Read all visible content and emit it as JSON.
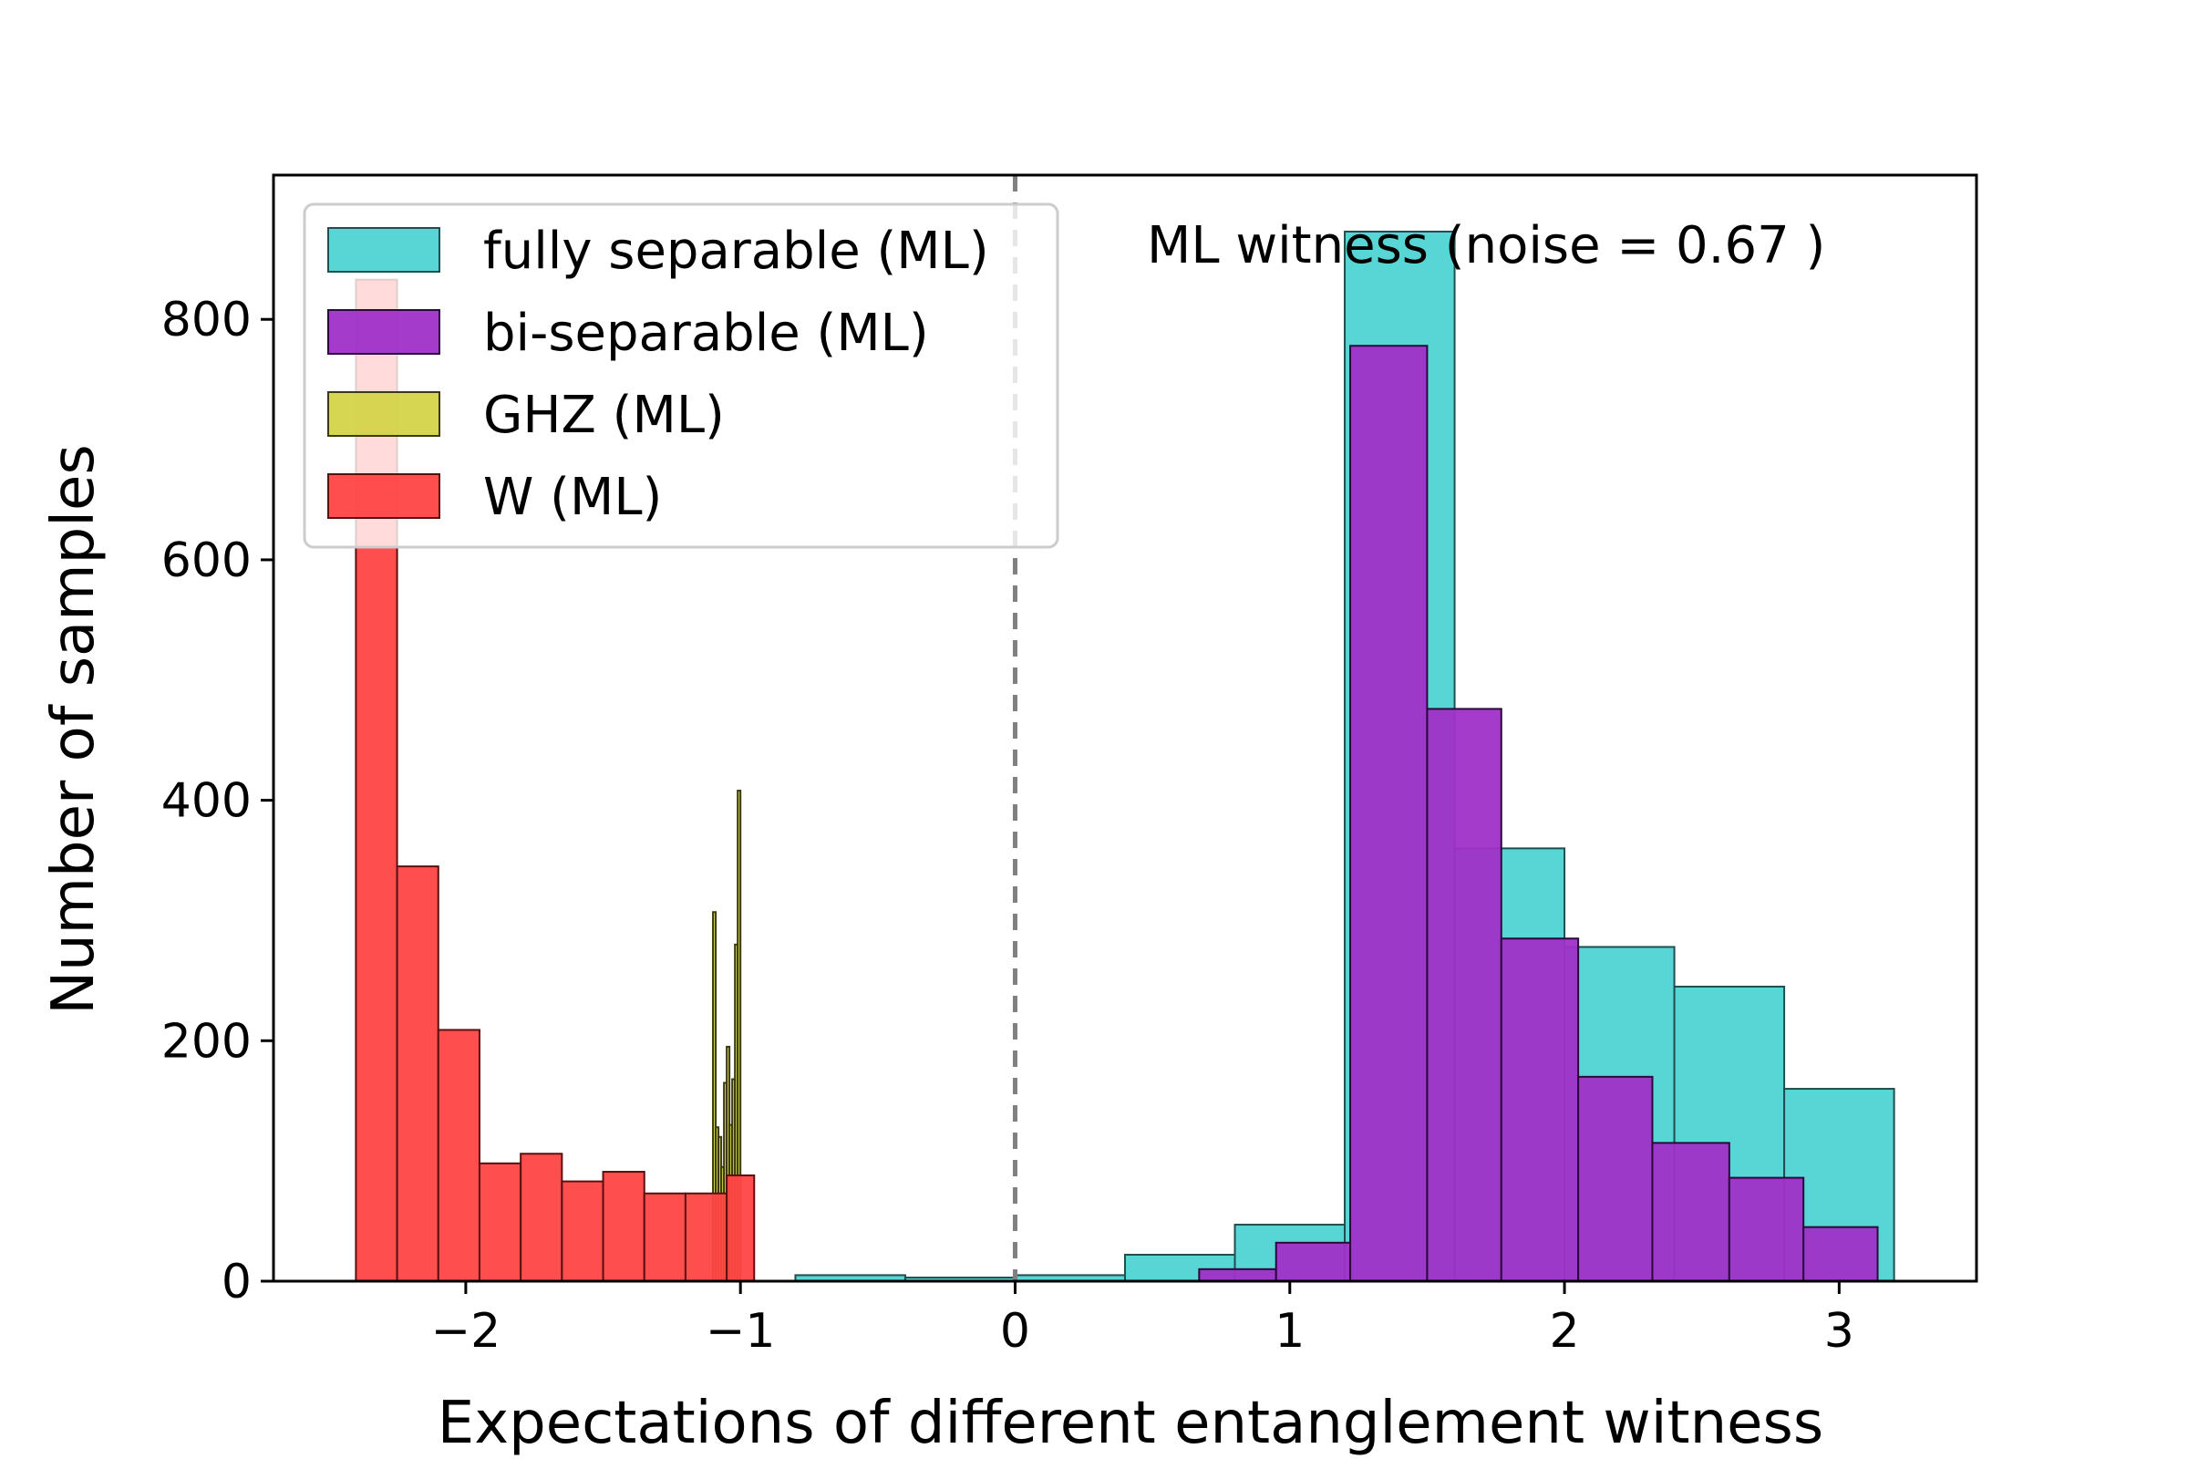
{
  "chart_data": {
    "type": "bar",
    "title": "",
    "xlabel": "Expectations of different entanglement witness",
    "ylabel": "Number of samples",
    "xlim": [
      -2.7,
      3.5
    ],
    "ylim": [
      0,
      920
    ],
    "xticks": [
      -2,
      -1,
      0,
      1,
      2,
      3
    ],
    "xtick_labels": [
      "−2",
      "−1",
      "0",
      "1",
      "2",
      "3"
    ],
    "yticks": [
      0,
      200,
      400,
      600,
      800
    ],
    "ytick_labels": [
      "0",
      "200",
      "400",
      "600",
      "800"
    ],
    "grid": false,
    "legend_position": "top-left",
    "annotation": "ML witness (noise = 0.67 )",
    "reference_line": {
      "x": 0,
      "style": "dashed",
      "color": "#808080"
    },
    "series": [
      {
        "name": "fully separable (ML)",
        "color": "#4fd3d3",
        "edge": "#1f4f4f",
        "bins": [
          [
            -0.8,
            -0.4,
            5
          ],
          [
            -0.4,
            0.0,
            3
          ],
          [
            0.0,
            0.4,
            5
          ],
          [
            0.4,
            0.8,
            22
          ],
          [
            0.8,
            1.2,
            47
          ],
          [
            1.2,
            1.6,
            873
          ],
          [
            1.6,
            2.0,
            360
          ],
          [
            2.0,
            2.4,
            278
          ],
          [
            2.4,
            2.8,
            245
          ],
          [
            2.8,
            3.2,
            160
          ]
        ]
      },
      {
        "name": "bi-separable (ML)",
        "color": "#a030c8",
        "edge": "#2a0a3a",
        "bins": [
          [
            0.67,
            0.95,
            10
          ],
          [
            0.95,
            1.22,
            32
          ],
          [
            1.22,
            1.5,
            778
          ],
          [
            1.5,
            1.77,
            476
          ],
          [
            1.77,
            2.05,
            285
          ],
          [
            2.05,
            2.32,
            170
          ],
          [
            2.32,
            2.6,
            115
          ],
          [
            2.6,
            2.87,
            86
          ],
          [
            2.87,
            3.14,
            45
          ]
        ]
      },
      {
        "name": "GHZ (ML)",
        "color": "#d4d44a",
        "edge": "#3a3a10",
        "bins": [
          [
            -1.1,
            -1.09,
            307
          ],
          [
            -1.09,
            -1.08,
            128
          ],
          [
            -1.08,
            -1.07,
            120
          ],
          [
            -1.07,
            -1.06,
            95
          ],
          [
            -1.06,
            -1.05,
            165
          ],
          [
            -1.05,
            -1.04,
            195
          ],
          [
            -1.04,
            -1.03,
            130
          ],
          [
            -1.03,
            -1.02,
            168
          ],
          [
            -1.02,
            -1.01,
            280
          ],
          [
            -1.01,
            -1.0,
            408
          ]
        ]
      },
      {
        "name": "W (ML)",
        "color": "#ff4545",
        "edge": "#5a1010",
        "bins": [
          [
            -2.4,
            -2.25,
            833
          ],
          [
            -2.25,
            -2.1,
            345
          ],
          [
            -2.1,
            -1.95,
            209
          ],
          [
            -1.95,
            -1.8,
            98
          ],
          [
            -1.8,
            -1.65,
            106
          ],
          [
            -1.65,
            -1.5,
            83
          ],
          [
            -1.5,
            -1.35,
            91
          ],
          [
            -1.35,
            -1.2,
            73
          ],
          [
            -1.2,
            -1.05,
            73
          ],
          [
            -1.05,
            -0.95,
            88
          ]
        ]
      }
    ]
  }
}
